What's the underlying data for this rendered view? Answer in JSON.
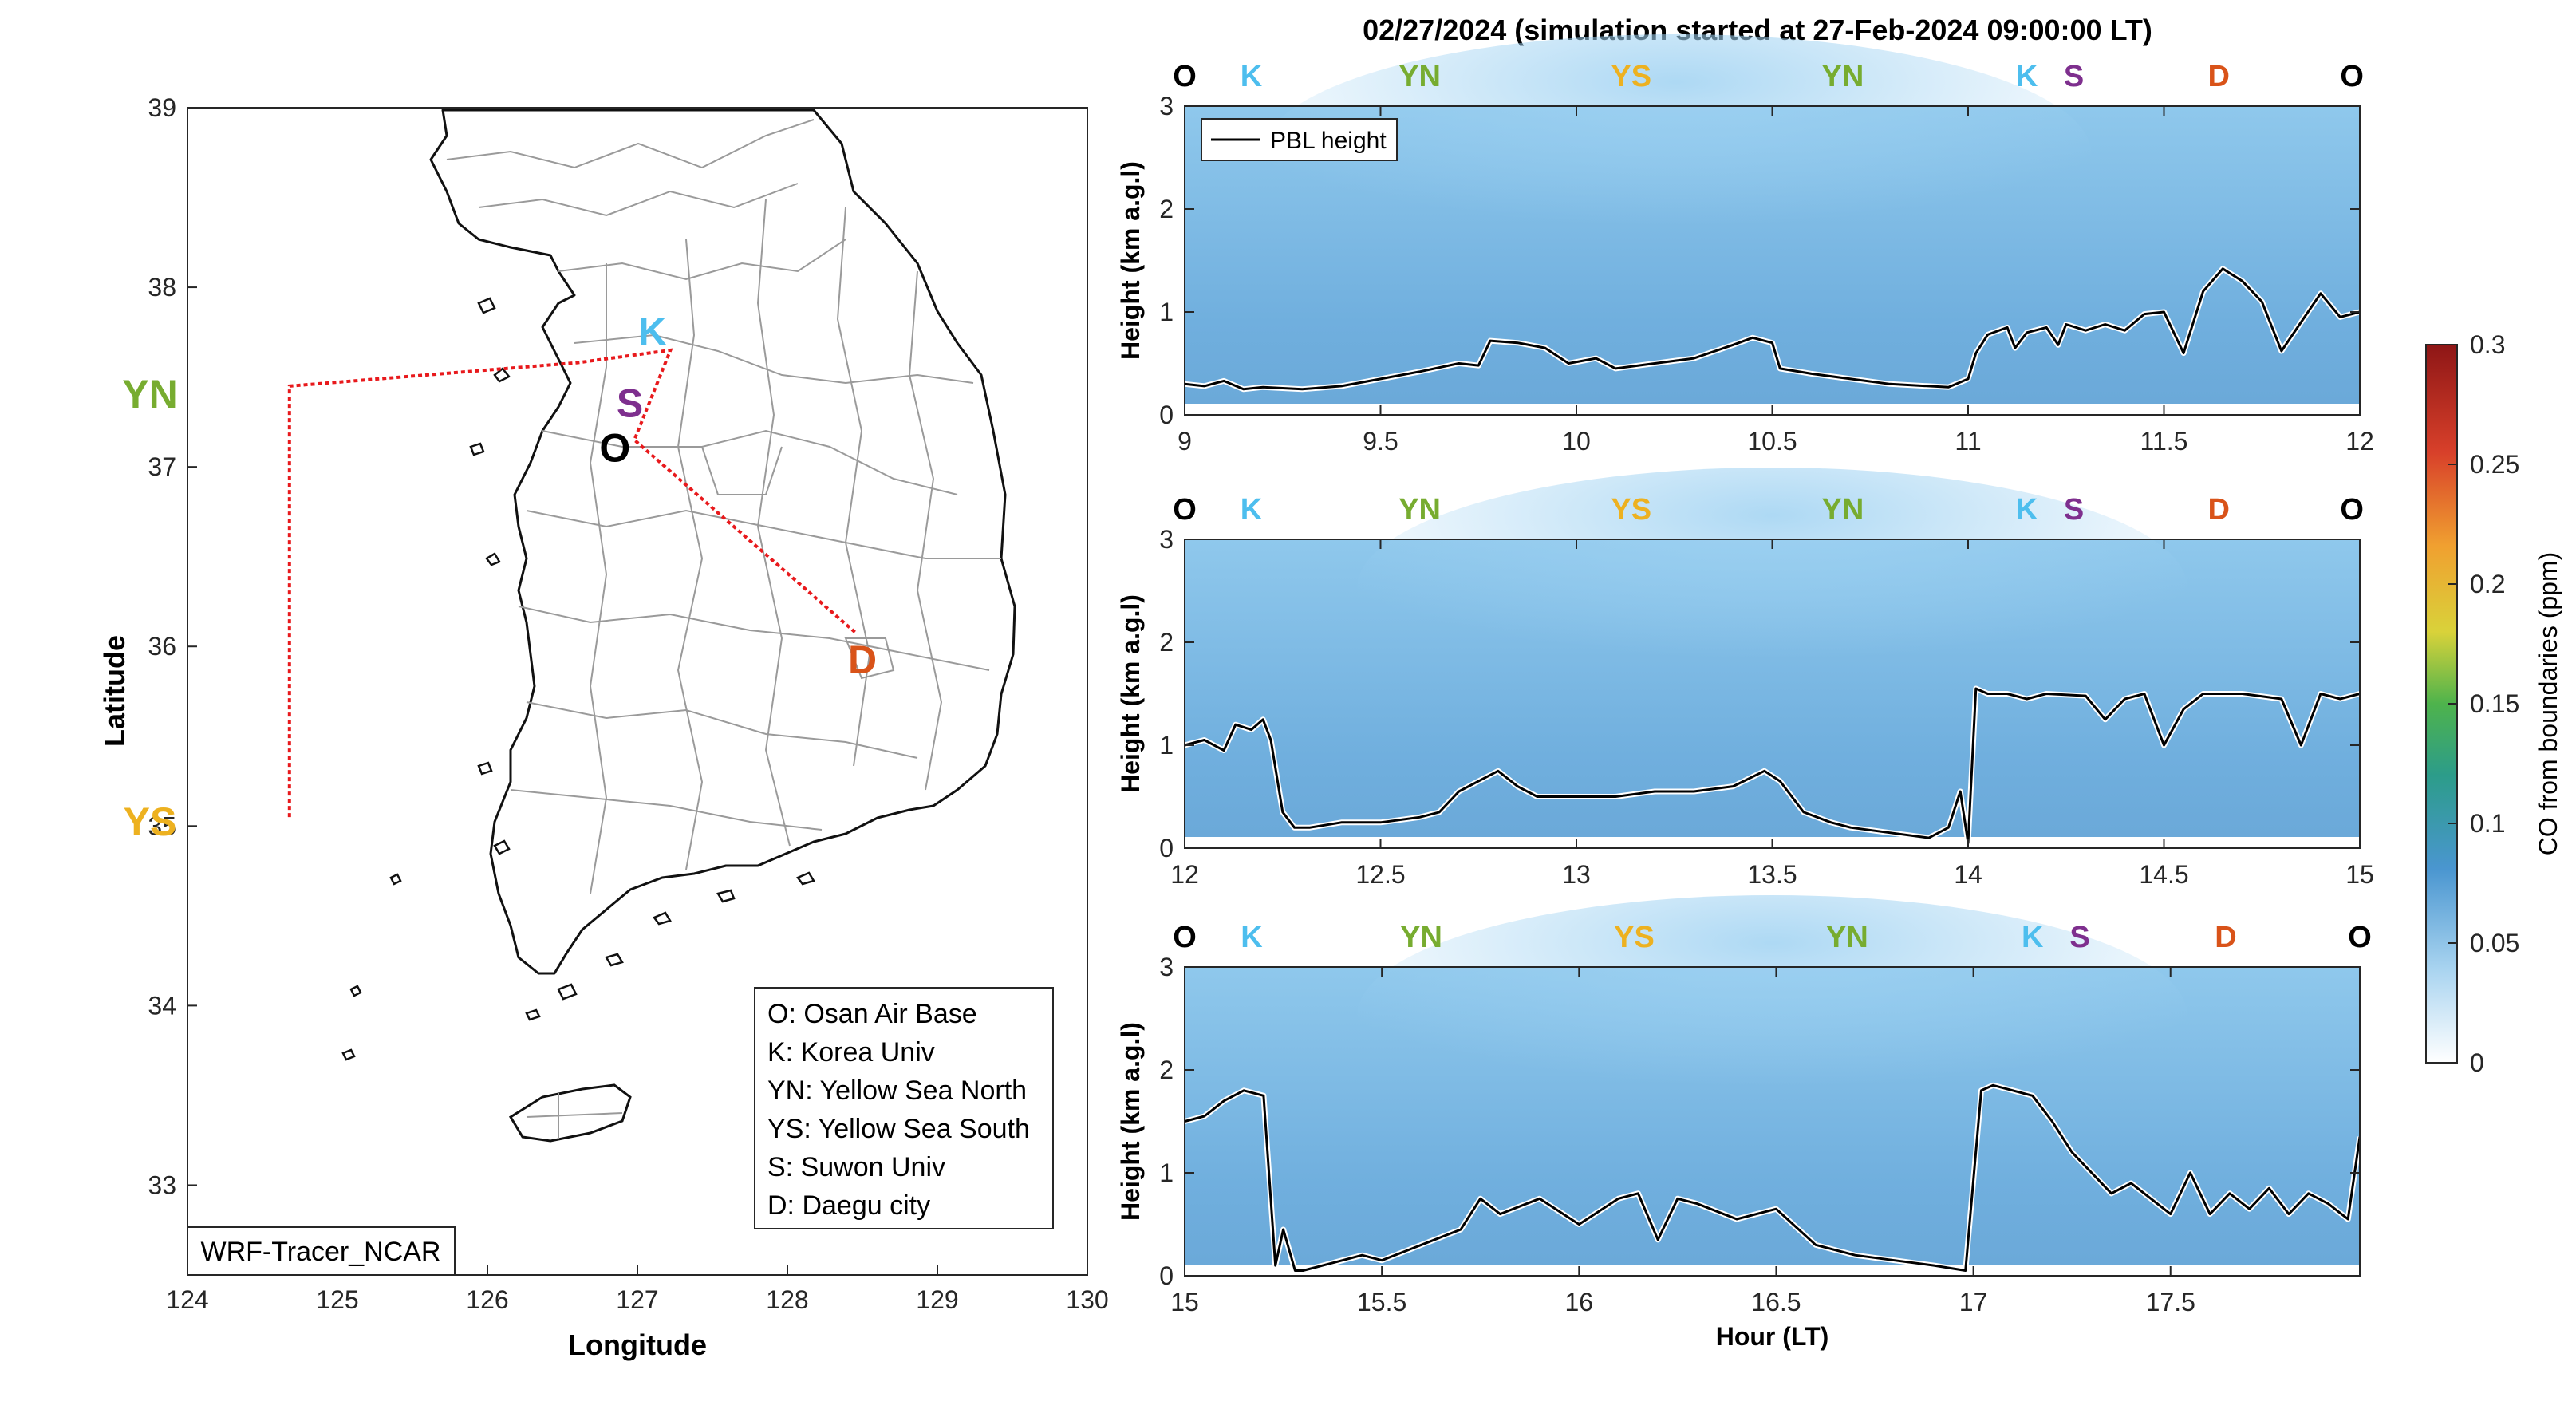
{
  "suptitle": "02/27/2024 (simulation started at 27-Feb-2024 09:00:00 LT)",
  "colors": {
    "O": "#000000",
    "K": "#4DBEEE",
    "YN": "#77AC30",
    "YS": "#EDB120",
    "S": "#7E2F8E",
    "D": "#D95319",
    "route": "#E8191C",
    "curtain_base": "#6AAAD8",
    "curtain_light": "#8FC8EC"
  },
  "map": {
    "xlabel": "Longitude",
    "ylabel": "Latitude",
    "xlim": [
      124,
      130
    ],
    "ylim": [
      32.5,
      39
    ],
    "xticks": [
      "124",
      "125",
      "126",
      "127",
      "128",
      "129",
      "130"
    ],
    "yticks": [
      "33",
      "34",
      "35",
      "36",
      "37",
      "38",
      "39"
    ],
    "model_label": "WRF-Tracer_NCAR",
    "sites": [
      {
        "code": "O",
        "lon": 126.85,
        "lat": 37.1
      },
      {
        "code": "K",
        "lon": 127.1,
        "lat": 37.75
      },
      {
        "code": "YN",
        "lon": 123.75,
        "lat": 37.4
      },
      {
        "code": "YS",
        "lon": 123.75,
        "lat": 35.02
      },
      {
        "code": "S",
        "lon": 126.95,
        "lat": 37.35
      },
      {
        "code": "D",
        "lon": 128.5,
        "lat": 35.92
      }
    ],
    "route": [
      {
        "lon": 124.68,
        "lat": 35.05
      },
      {
        "lon": 124.68,
        "lat": 37.45
      },
      {
        "lon": 126.6,
        "lat": 37.58
      },
      {
        "lon": 127.22,
        "lat": 37.65
      },
      {
        "lon": 126.98,
        "lat": 37.15
      },
      {
        "lon": 128.45,
        "lat": 36.08
      }
    ],
    "legend": [
      "O: Osan Air Base",
      "K: Korea Univ",
      "YN: Yellow Sea North",
      "YS: Yellow Sea South",
      "S: Suwon Univ",
      "D: Daegu city"
    ]
  },
  "chart_data": {
    "type": "line",
    "title": "02/27/2024 (simulation started at 27-Feb-2024 09:00:00 LT)",
    "xlabel": "Hour (LT)",
    "ylabel": "Height (km a.g.l)",
    "series_name": "PBL height",
    "ylim": [
      0,
      3
    ],
    "yticks": [
      "0",
      "1",
      "2",
      "3"
    ],
    "colorbar": {
      "label": "CO from boundaries (ppm)",
      "range": [
        0,
        0.3
      ],
      "ticks": [
        "0",
        "0.05",
        "0.1",
        "0.15",
        "0.2",
        "0.25",
        "0.3"
      ]
    },
    "panels": [
      {
        "xlim": [
          9,
          12
        ],
        "xticks": [
          "9",
          "9.5",
          "10",
          "10.5",
          "11",
          "11.5",
          "12"
        ],
        "tick_values": [
          9,
          9.5,
          10,
          10.5,
          11,
          11.5,
          12
        ],
        "site_labels": [
          {
            "code": "O",
            "hour": 9.0
          },
          {
            "code": "K",
            "hour": 9.17
          },
          {
            "code": "YN",
            "hour": 9.6
          },
          {
            "code": "YS",
            "hour": 10.14
          },
          {
            "code": "YN",
            "hour": 10.68
          },
          {
            "code": "K",
            "hour": 11.15
          },
          {
            "code": "S",
            "hour": 11.27
          },
          {
            "code": "D",
            "hour": 11.64
          },
          {
            "code": "O",
            "hour": 11.98
          }
        ],
        "x": [
          9.0,
          9.05,
          9.1,
          9.15,
          9.2,
          9.3,
          9.4,
          9.5,
          9.6,
          9.7,
          9.75,
          9.78,
          9.85,
          9.92,
          9.98,
          10.05,
          10.1,
          10.2,
          10.3,
          10.4,
          10.45,
          10.5,
          10.52,
          10.6,
          10.7,
          10.8,
          10.9,
          10.95,
          11.0,
          11.02,
          11.05,
          11.1,
          11.12,
          11.15,
          11.2,
          11.23,
          11.25,
          11.3,
          11.35,
          11.4,
          11.45,
          11.5,
          11.55,
          11.6,
          11.65,
          11.7,
          11.75,
          11.8,
          11.85,
          11.9,
          11.95,
          12.0
        ],
        "pbl": [
          0.3,
          0.28,
          0.33,
          0.25,
          0.27,
          0.25,
          0.28,
          0.35,
          0.42,
          0.5,
          0.48,
          0.72,
          0.7,
          0.65,
          0.5,
          0.55,
          0.45,
          0.5,
          0.55,
          0.68,
          0.75,
          0.7,
          0.45,
          0.4,
          0.35,
          0.3,
          0.28,
          0.27,
          0.35,
          0.6,
          0.78,
          0.85,
          0.65,
          0.8,
          0.85,
          0.68,
          0.88,
          0.82,
          0.88,
          0.82,
          0.98,
          1.0,
          0.6,
          1.2,
          1.42,
          1.3,
          1.1,
          0.62,
          0.9,
          1.18,
          0.95,
          1.0
        ]
      },
      {
        "xlim": [
          12,
          15
        ],
        "xticks": [
          "12",
          "12.5",
          "13",
          "13.5",
          "14",
          "14.5",
          "15"
        ],
        "tick_values": [
          12,
          12.5,
          13,
          13.5,
          14,
          14.5,
          15
        ],
        "site_labels": [
          {
            "code": "O",
            "hour": 12.0
          },
          {
            "code": "K",
            "hour": 12.17
          },
          {
            "code": "YN",
            "hour": 12.6
          },
          {
            "code": "YS",
            "hour": 13.14
          },
          {
            "code": "YN",
            "hour": 13.68
          },
          {
            "code": "K",
            "hour": 14.15
          },
          {
            "code": "S",
            "hour": 14.27
          },
          {
            "code": "D",
            "hour": 14.64
          },
          {
            "code": "O",
            "hour": 14.98
          }
        ],
        "x": [
          12.0,
          12.05,
          12.1,
          12.13,
          12.17,
          12.2,
          12.22,
          12.25,
          12.28,
          12.32,
          12.4,
          12.5,
          12.6,
          12.65,
          12.7,
          12.75,
          12.8,
          12.85,
          12.9,
          13.0,
          13.1,
          13.2,
          13.3,
          13.4,
          13.48,
          13.52,
          13.58,
          13.65,
          13.7,
          13.8,
          13.9,
          13.95,
          13.98,
          14.0,
          14.02,
          14.05,
          14.1,
          14.15,
          14.2,
          14.3,
          14.35,
          14.4,
          14.45,
          14.5,
          14.55,
          14.6,
          14.7,
          14.8,
          14.85,
          14.9,
          14.95,
          15.0
        ],
        "pbl": [
          1.0,
          1.05,
          0.95,
          1.2,
          1.15,
          1.25,
          1.05,
          0.35,
          0.2,
          0.2,
          0.25,
          0.25,
          0.3,
          0.35,
          0.55,
          0.65,
          0.75,
          0.6,
          0.5,
          0.5,
          0.5,
          0.55,
          0.55,
          0.6,
          0.75,
          0.65,
          0.35,
          0.25,
          0.2,
          0.15,
          0.1,
          0.2,
          0.55,
          0.05,
          1.55,
          1.5,
          1.5,
          1.45,
          1.5,
          1.48,
          1.25,
          1.45,
          1.5,
          1.0,
          1.35,
          1.5,
          1.5,
          1.45,
          1.0,
          1.5,
          1.45,
          1.5
        ]
      },
      {
        "xlim": [
          15,
          17.98
        ],
        "xticks": [
          "15",
          "15.5",
          "16",
          "16.5",
          "17",
          "17.5"
        ],
        "tick_values": [
          15,
          15.5,
          16,
          16.5,
          17,
          17.5
        ],
        "xlabel": "Hour (LT)",
        "site_labels": [
          {
            "code": "O",
            "hour": 15.0
          },
          {
            "code": "K",
            "hour": 15.17
          },
          {
            "code": "YN",
            "hour": 15.6
          },
          {
            "code": "YS",
            "hour": 16.14
          },
          {
            "code": "YN",
            "hour": 16.68
          },
          {
            "code": "K",
            "hour": 17.15
          },
          {
            "code": "S",
            "hour": 17.27
          },
          {
            "code": "D",
            "hour": 17.64
          },
          {
            "code": "O",
            "hour": 17.98
          }
        ],
        "x": [
          15.0,
          15.05,
          15.1,
          15.15,
          15.2,
          15.23,
          15.25,
          15.28,
          15.3,
          15.35,
          15.4,
          15.45,
          15.5,
          15.6,
          15.7,
          15.75,
          15.8,
          15.9,
          16.0,
          16.1,
          16.15,
          16.2,
          16.25,
          16.3,
          16.4,
          16.5,
          16.6,
          16.7,
          16.8,
          16.9,
          16.98,
          17.02,
          17.05,
          17.1,
          17.15,
          17.2,
          17.25,
          17.3,
          17.35,
          17.4,
          17.5,
          17.55,
          17.6,
          17.65,
          17.7,
          17.75,
          17.8,
          17.85,
          17.9,
          17.95,
          17.98
        ],
        "pbl": [
          1.5,
          1.55,
          1.7,
          1.8,
          1.75,
          0.1,
          0.45,
          0.05,
          0.05,
          0.1,
          0.15,
          0.2,
          0.15,
          0.3,
          0.45,
          0.75,
          0.6,
          0.75,
          0.5,
          0.75,
          0.8,
          0.35,
          0.75,
          0.7,
          0.55,
          0.65,
          0.3,
          0.2,
          0.15,
          0.1,
          0.05,
          1.8,
          1.85,
          1.8,
          1.75,
          1.5,
          1.2,
          1.0,
          0.8,
          0.9,
          0.6,
          1.0,
          0.6,
          0.8,
          0.65,
          0.85,
          0.6,
          0.8,
          0.7,
          0.55,
          1.35
        ]
      }
    ]
  }
}
